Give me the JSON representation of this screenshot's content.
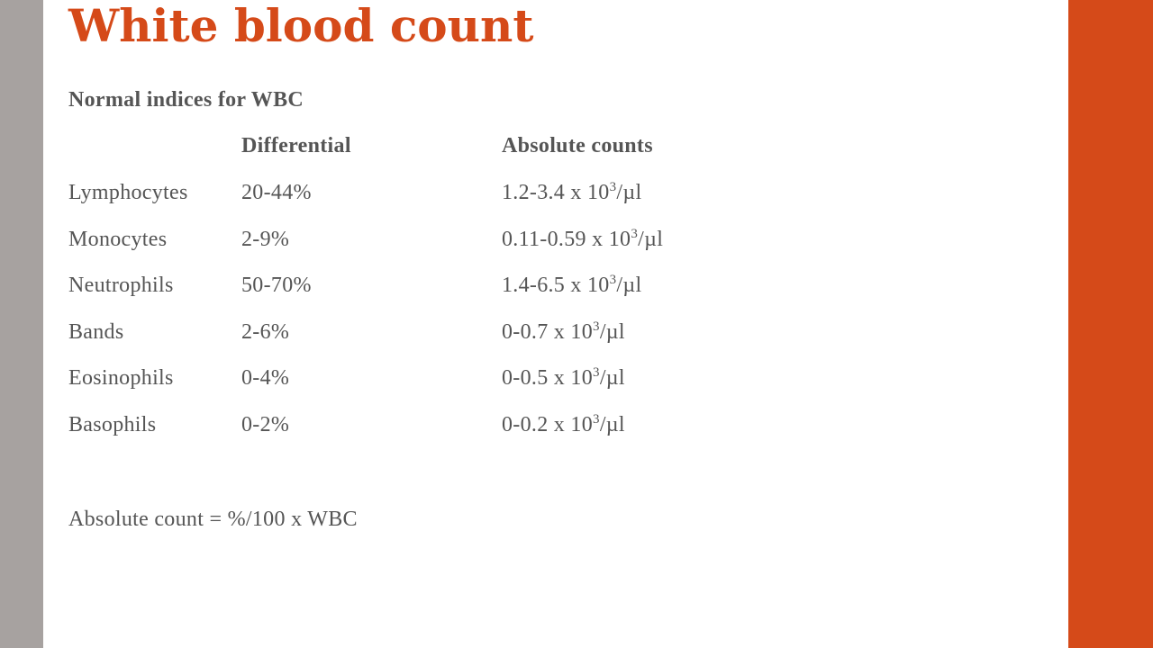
{
  "slide": {
    "title": "White blood count",
    "subtitle": "Normal indices for WBC",
    "accent_color": "#d54a19",
    "side_bar_color": "#a7a2a0",
    "text_color": "#555555"
  },
  "table": {
    "columns": [
      "",
      "Differential",
      "Absolute counts"
    ],
    "unit_prefix": " x 10",
    "unit_exponent": "3",
    "unit_suffix": "/µl",
    "rows": [
      {
        "name": "Lymphocytes",
        "differential": "20-44%",
        "absolute": "1.2-3.4"
      },
      {
        "name": "Monocytes",
        "differential": "2-9%",
        "absolute": "0.11-0.59"
      },
      {
        "name": "Neutrophils",
        "differential": "50-70%",
        "absolute": "1.4-6.5"
      },
      {
        "name": "Bands",
        "differential": "2-6%",
        "absolute": "0-0.7"
      },
      {
        "name": "Eosinophils",
        "differential": "0-4%",
        "absolute": "0-0.5"
      },
      {
        "name": "Basophils",
        "differential": "0-2%",
        "absolute": "0-0.2"
      }
    ]
  },
  "formula": "Absolute count = %/100 x WBC"
}
